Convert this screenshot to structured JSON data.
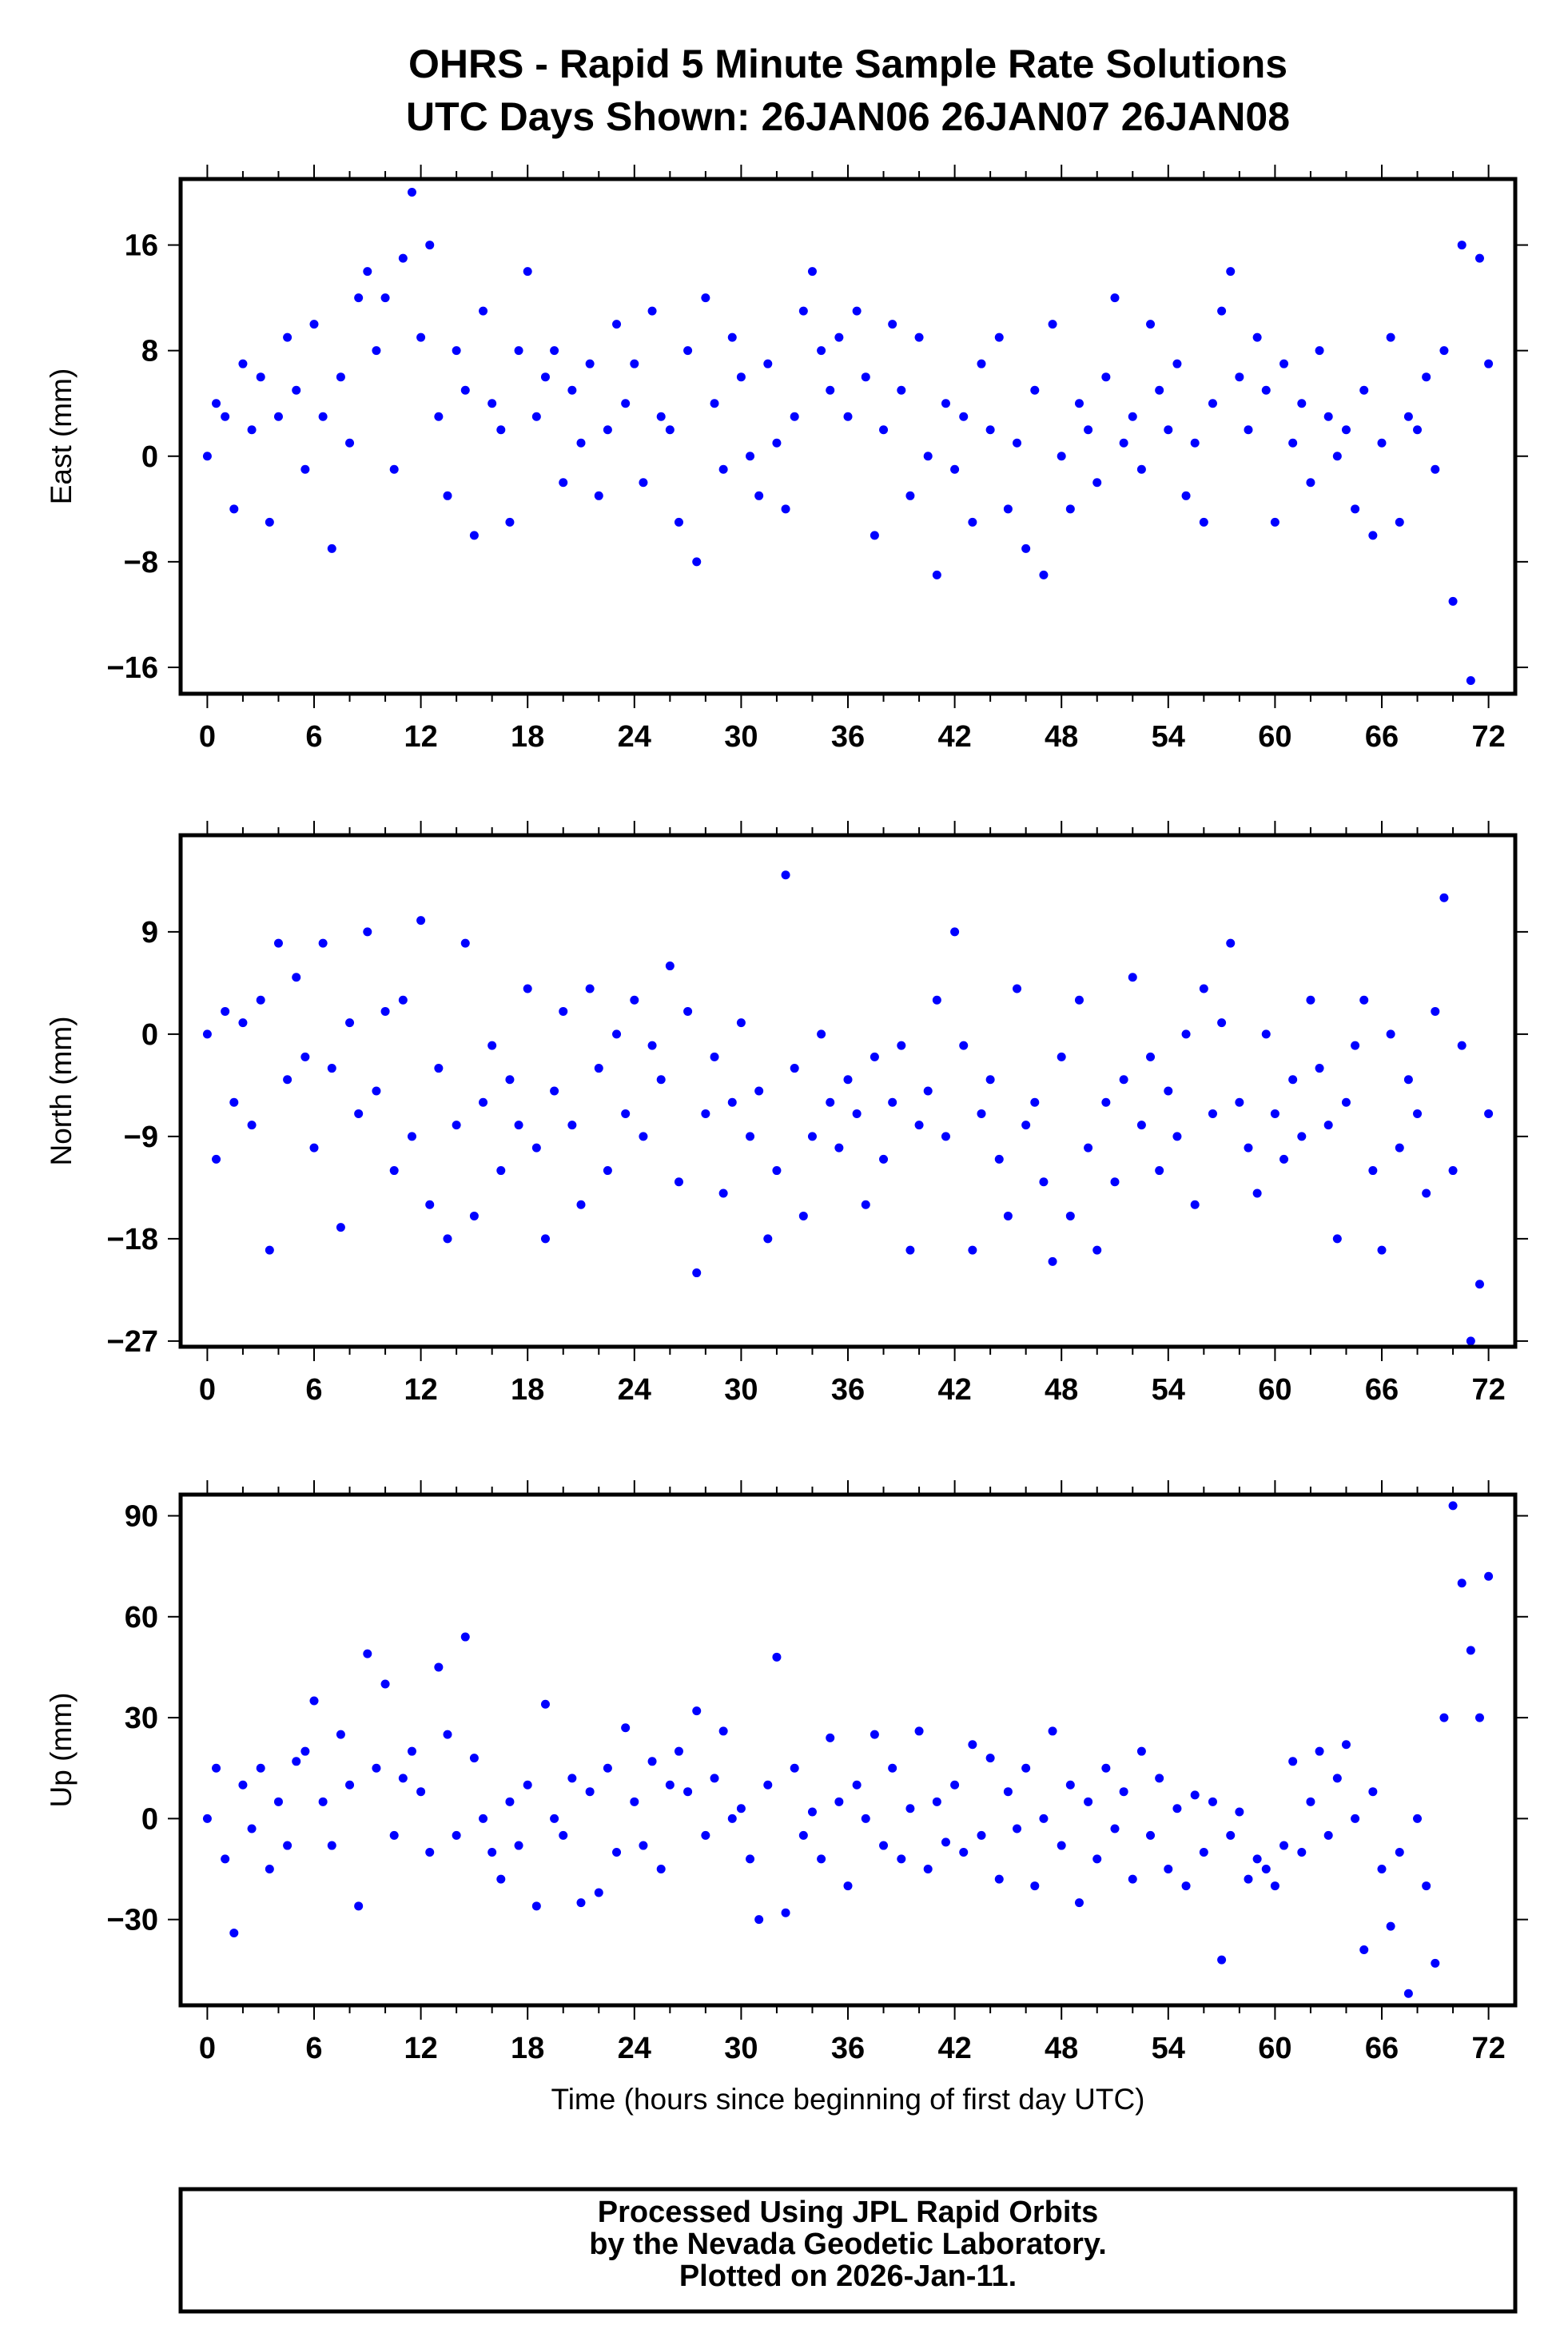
{
  "header": {
    "title_line1": "OHRS - Rapid 5 Minute Sample Rate Solutions",
    "title_line2": "UTC Days Shown:  26JAN06 26JAN07 26JAN08"
  },
  "footer": {
    "line1": "Processed Using JPL Rapid Orbits",
    "line2": "by the Nevada Geodetic Laboratory.",
    "line3": "Plotted on 2026-Jan-11."
  },
  "colors": {
    "points": "#0000ff",
    "frame": "#000000"
  },
  "chart_data": [
    {
      "type": "scatter",
      "id": "east",
      "ylabel": "East (mm)",
      "xlabel": "",
      "xlim": [
        -1.5,
        73.5
      ],
      "ylim": [
        -18,
        21
      ],
      "xticks": [
        0,
        6,
        12,
        18,
        24,
        30,
        36,
        42,
        48,
        54,
        60,
        66,
        72
      ],
      "yticks": [
        16,
        8,
        0,
        -8,
        -16
      ],
      "ytick_labels": [
        "16",
        "8",
        "0",
        "−8",
        "−16"
      ],
      "x_start": 0,
      "x_step": 0.5,
      "values": [
        0,
        4,
        3,
        -4,
        7,
        2,
        6,
        -5,
        3,
        9,
        5,
        -1,
        10,
        3,
        -7,
        6,
        1,
        12,
        14,
        8,
        12,
        -1,
        15,
        20,
        9,
        16,
        3,
        -3,
        8,
        5,
        -6,
        11,
        4,
        2,
        -5,
        8,
        14,
        3,
        6,
        8,
        -2,
        5,
        1,
        7,
        -3,
        2,
        10,
        4,
        7,
        -2,
        11,
        3,
        2,
        -5,
        8,
        -8,
        12,
        4,
        -1,
        9,
        6,
        0,
        -3,
        7,
        1,
        -4,
        3,
        11,
        14,
        8,
        5,
        9,
        3,
        11,
        6,
        -6,
        2,
        10,
        5,
        -3,
        9,
        0,
        -9,
        4,
        -1,
        3,
        -5,
        7,
        2,
        9,
        -4,
        1,
        -7,
        5,
        -9,
        10,
        0,
        -4,
        4,
        2,
        -2,
        6,
        12,
        1,
        3,
        -1,
        10,
        5,
        2,
        7,
        -3,
        1,
        -5,
        4,
        11,
        14,
        6,
        2,
        9,
        5,
        -5,
        7,
        1,
        4,
        -2,
        8,
        3,
        0,
        2,
        -4,
        5,
        -6,
        1,
        9,
        -5,
        3,
        2,
        6,
        -1,
        8,
        -11,
        16,
        -17,
        15,
        7
      ]
    },
    {
      "type": "scatter",
      "id": "north",
      "ylabel": "North (mm)",
      "xlabel": "",
      "xlim": [
        -1.5,
        73.5
      ],
      "ylim": [
        -27.5,
        17.5
      ],
      "xticks": [
        0,
        6,
        12,
        18,
        24,
        30,
        36,
        42,
        48,
        54,
        60,
        66,
        72
      ],
      "yticks": [
        9,
        0,
        -9,
        -18,
        -27
      ],
      "ytick_labels": [
        "9",
        "0",
        "−9",
        "−18",
        "−27"
      ],
      "x_start": 0,
      "x_step": 0.5,
      "values": [
        0,
        -11,
        2,
        -6,
        1,
        -8,
        3,
        -19,
        8,
        -4,
        5,
        -2,
        -10,
        8,
        -3,
        -17,
        1,
        -7,
        9,
        -5,
        2,
        -12,
        3,
        -9,
        10,
        -15,
        -3,
        -18,
        -8,
        8,
        -16,
        -6,
        -1,
        -12,
        -4,
        -8,
        4,
        -10,
        -18,
        -5,
        2,
        -8,
        -15,
        4,
        -3,
        -12,
        0,
        -7,
        3,
        -9,
        -1,
        -4,
        6,
        -13,
        2,
        -21,
        -7,
        -2,
        -14,
        -6,
        1,
        -9,
        -5,
        -18,
        -12,
        14,
        -3,
        -16,
        -9,
        0,
        -6,
        -10,
        -4,
        -7,
        -15,
        -2,
        -11,
        -6,
        -1,
        -19,
        -8,
        -5,
        3,
        -9,
        9,
        -1,
        -19,
        -7,
        -4,
        -11,
        -16,
        4,
        -8,
        -6,
        -13,
        -20,
        -2,
        -16,
        3,
        -10,
        -19,
        -6,
        -13,
        -4,
        5,
        -8,
        -2,
        -12,
        -5,
        -9,
        0,
        -15,
        4,
        -7,
        1,
        8,
        -6,
        -10,
        -14,
        0,
        -7,
        -11,
        -4,
        -9,
        3,
        -3,
        -8,
        -18,
        -6,
        -1,
        3,
        -12,
        -19,
        0,
        -10,
        -4,
        -7,
        -14,
        2,
        12,
        -12,
        -1,
        -27,
        -22,
        -7
      ]
    },
    {
      "type": "scatter",
      "id": "up",
      "ylabel": "Up (mm)",
      "xlabel": "Time (hours since beginning of first day UTC)",
      "xlim": [
        -1.5,
        73.5
      ],
      "ylim": [
        -55.5,
        96.3
      ],
      "xticks": [
        0,
        6,
        12,
        18,
        24,
        30,
        36,
        42,
        48,
        54,
        60,
        66,
        72
      ],
      "yticks": [
        90,
        60,
        30,
        0,
        -30
      ],
      "ytick_labels": [
        "90",
        "60",
        "30",
        "0",
        "−30"
      ],
      "x_start": 0,
      "x_step": 0.5,
      "values": [
        0,
        15,
        -12,
        -34,
        10,
        -3,
        15,
        -15,
        5,
        -8,
        17,
        20,
        35,
        5,
        -8,
        25,
        10,
        -26,
        49,
        15,
        40,
        -5,
        12,
        20,
        8,
        -10,
        45,
        25,
        -5,
        54,
        18,
        0,
        -10,
        -18,
        5,
        -8,
        10,
        -26,
        34,
        0,
        -5,
        12,
        -25,
        8,
        -22,
        15,
        -10,
        27,
        5,
        -8,
        17,
        -15,
        10,
        20,
        8,
        32,
        -5,
        12,
        26,
        0,
        3,
        -12,
        -30,
        10,
        48,
        -28,
        15,
        -5,
        2,
        -12,
        24,
        5,
        -20,
        10,
        0,
        25,
        -8,
        15,
        -12,
        3,
        26,
        -15,
        5,
        -7,
        10,
        -10,
        22,
        -5,
        18,
        -18,
        8,
        -3,
        15,
        -20,
        0,
        26,
        -8,
        10,
        -25,
        5,
        -12,
        15,
        -3,
        8,
        -18,
        20,
        -5,
        12,
        -15,
        3,
        -20,
        7,
        -10,
        5,
        -42,
        -5,
        2,
        -18,
        -12,
        -15,
        -20,
        -8,
        17,
        -10,
        5,
        20,
        -5,
        12,
        22,
        0,
        -39,
        8,
        -15,
        -32,
        -10,
        -52,
        0,
        -20,
        -43,
        30,
        93,
        70,
        50,
        30,
        72
      ]
    }
  ]
}
